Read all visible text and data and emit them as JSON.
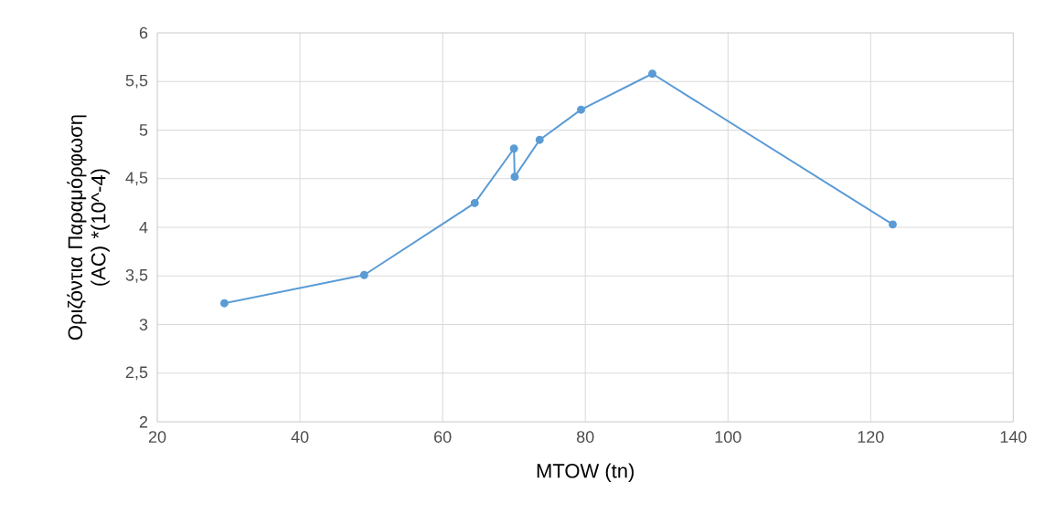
{
  "chart_data": {
    "type": "line",
    "xlabel": "MTOW (tn)",
    "ylabel": "Οριζόντια Παραμόρφωση (AC) *(10^-4)",
    "x": [
      29.4,
      49,
      64.5,
      70.0,
      70.1,
      73.6,
      79.4,
      89.4,
      123.1
    ],
    "series": [
      {
        "color": "#5b9bd5",
        "values": [
          3.22,
          3.51,
          4.25,
          4.81,
          4.52,
          4.9,
          5.21,
          5.58,
          4.03
        ]
      }
    ],
    "xlim": [
      20,
      140
    ],
    "xticks": [
      20,
      40,
      60,
      80,
      100,
      120,
      140
    ],
    "ylim": [
      2,
      6
    ],
    "yticks": [
      2,
      {
        "value": 2.5,
        "label": "2,5"
      },
      3,
      {
        "value": 3.5,
        "label": "3,5"
      },
      4,
      {
        "value": 4.5,
        "label": "4,5"
      },
      5,
      {
        "value": 5.5,
        "label": "5,5"
      },
      6
    ],
    "grid": true,
    "marker": "circle",
    "line_style": "solid"
  }
}
